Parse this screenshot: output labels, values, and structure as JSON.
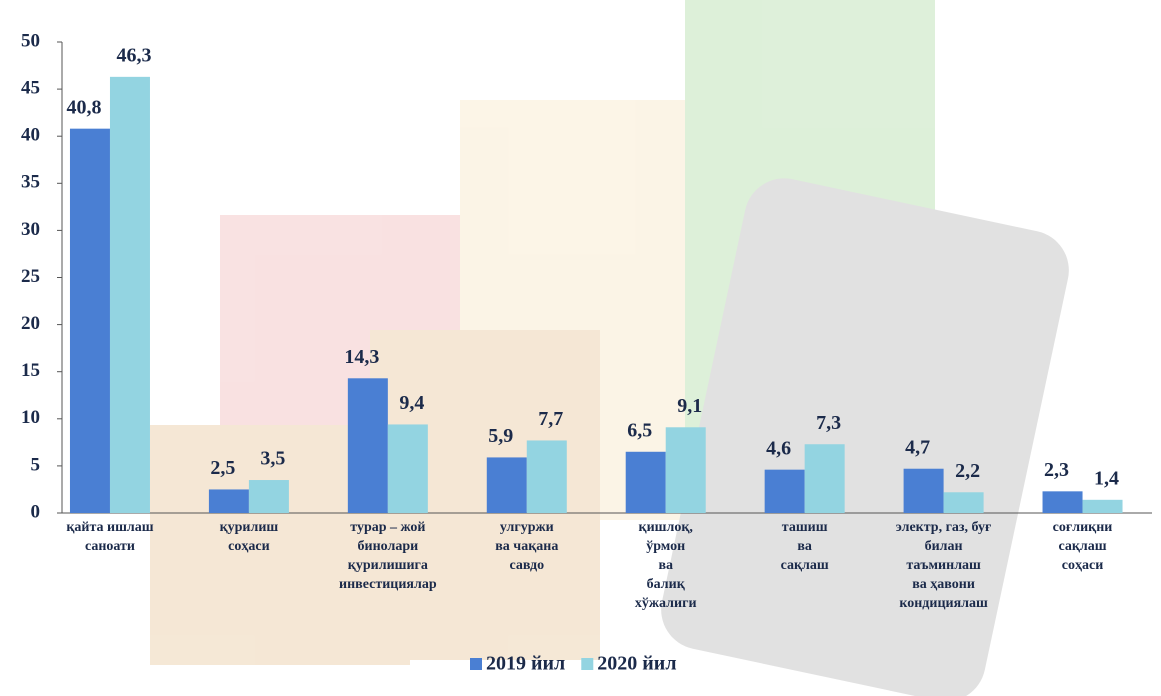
{
  "chart_data": {
    "type": "bar",
    "categories": [
      [
        "қайта ишлаш",
        "саноати"
      ],
      [
        "қурилиш",
        "соҳаси"
      ],
      [
        "турар – жой",
        "бинолари",
        "қурилишига",
        "инвестициялар"
      ],
      [
        "улгуржи",
        "ва чақана",
        "савдо"
      ],
      [
        "қишлоқ,",
        "ўрмон",
        "ва",
        "балиқ",
        "хўжалиги"
      ],
      [
        "ташиш",
        "ва",
        "сақлаш"
      ],
      [
        "электр, газ, буғ",
        "билан",
        "таъминлаш",
        "ва ҳавони",
        "кондициялаш"
      ],
      [
        "соғлиқни",
        "сақлаш",
        "соҳаси"
      ]
    ],
    "series": [
      {
        "name": "2019 йил",
        "color": "#4a7fd3",
        "values": [
          40.8,
          2.5,
          14.3,
          5.9,
          6.5,
          4.6,
          4.7,
          2.3
        ],
        "value_labels": [
          "40,8",
          "2,5",
          "14,3",
          "5,9",
          "6,5",
          "4,6",
          "4,7",
          "2,3"
        ]
      },
      {
        "name": "2020 йил",
        "color": "#93d4e1",
        "values": [
          46.3,
          3.5,
          9.4,
          7.7,
          9.1,
          7.3,
          2.2,
          1.4
        ],
        "value_labels": [
          "46,3",
          "3,5",
          "9,4",
          "7,7",
          "9,1",
          "7,3",
          "2,2",
          "1,4"
        ]
      }
    ],
    "ylim": [
      0,
      50
    ],
    "yticks": [
      0,
      5,
      10,
      15,
      20,
      25,
      30,
      35,
      40,
      45,
      50
    ],
    "legend": "bottom"
  }
}
